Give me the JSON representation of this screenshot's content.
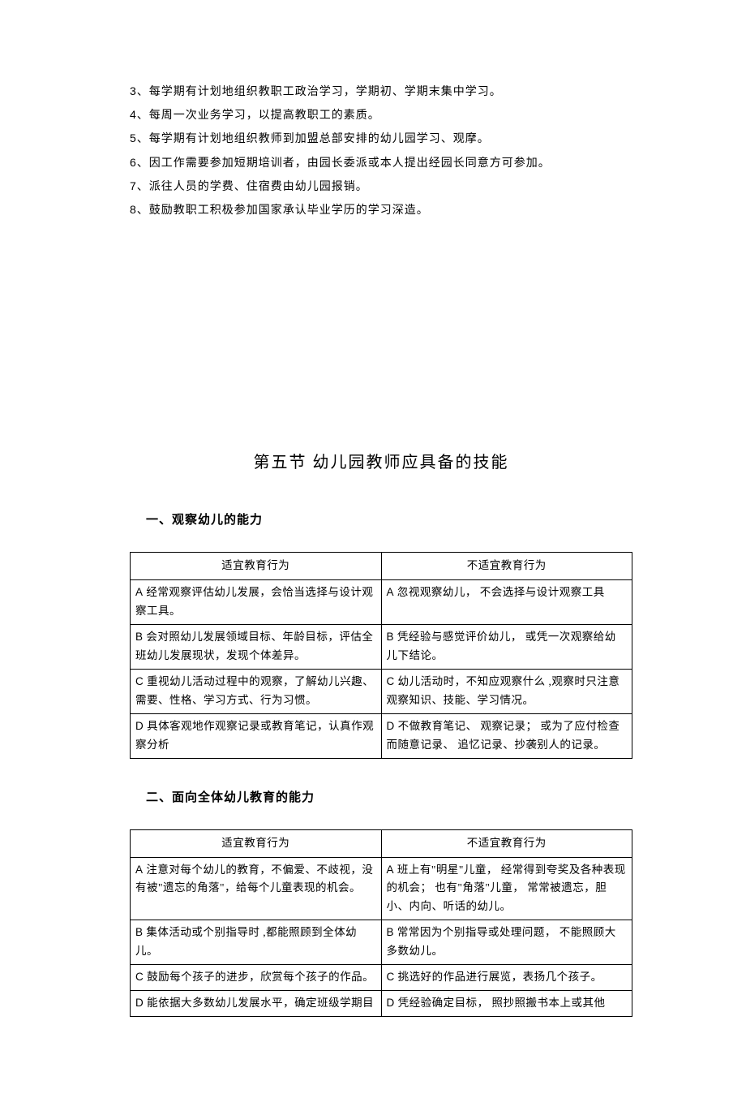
{
  "list": {
    "items": [
      {
        "num": "3",
        "text": "、每学期有计划地组织教职工政治学习，学期初、学期末集中学习。"
      },
      {
        "num": "4",
        "text": "、每周一次业务学习，以提高教职工的素质。"
      },
      {
        "num": "5",
        "text": "、每学期有计划地组织教师到加盟总部安排的幼儿园学习、观摩。"
      },
      {
        "num": "6",
        "text": "、因工作需要参加短期培训者，由园长委派或本人提出经园长同意方可参加。"
      },
      {
        "num": "7",
        "text": "、派往人员的学费、住宿费由幼儿园报销。"
      },
      {
        "num": "8",
        "text": "、鼓励教职工积极参加国家承认毕业学历的学习深造。"
      }
    ]
  },
  "section_title": "第五节 幼儿园教师应具备的技能",
  "subsection1": {
    "title": "一、观察幼儿的能力",
    "headers": {
      "left": "适宜教育行为",
      "right": "不适宜教育行为"
    },
    "rows": [
      {
        "left_label": "A",
        "left": " 经常观察评估幼儿发展，会恰当选择与设计观察工具。",
        "right_label": "A",
        "right": " 忽视观察幼儿，  不会选择与设计观察工具"
      },
      {
        "left_label": "B",
        "left": " 会对照幼儿发展领域目标、年龄目标，评估全班幼儿发展现状，发现个体差异。",
        "right_label": "B",
        "right": " 凭经验与感觉评价幼儿，  或凭一次观察给幼儿下结论。"
      },
      {
        "left_label": "C",
        "left": " 重视幼儿活动过程中的观察，了解幼儿兴趣、需要、性格、学习方式、行为习惯。",
        "right_label": "C",
        "right": " 幼儿活动时，不知应观察什么   ,观察时只注意观察知识、技能、学习情况。"
      },
      {
        "left_label": "D",
        "left": " 具体客观地作观察记录或教育笔记，认真作观察分析",
        "right_label": "D",
        "right": " 不做教育笔记、  观察记录；  或为了应付检查而随意记录、  追忆记录、抄袭别人的记录。"
      }
    ]
  },
  "subsection2": {
    "title": "二、面向全体幼儿教育的能力",
    "headers": {
      "left": "适宜教育行为",
      "right": "不适宜教育行为"
    },
    "rows": [
      {
        "left_label": "A",
        "left": " 注意对每个幼儿的教育，不偏爱、不歧视，没有被\"遗忘的角落\"，给每个儿童表现的机会。",
        "right_label": "A",
        "right": " 班上有\"明星\"儿童，  经常得到夸奖及各种表现的机会；  也有\"角落\"儿童，  常常被遗忘，胆小、内向、听话的幼儿。"
      },
      {
        "left_label": "B",
        "left": " 集体活动或个别指导时   ,都能照顾到全体幼儿。",
        "right_label": "B",
        "right": " 常常因为个别指导或处理问题，  不能照顾大多数幼儿。"
      },
      {
        "left_label": "C",
        "left": " 鼓励每个孩子的进步，欣赏每个孩子的作品。",
        "right_label": "C",
        "right": " 挑选好的作品进行展览，表扬几个孩子。"
      },
      {
        "left_label": "D",
        "left": " 能依据大多数幼儿发展水平，确定班级学期目",
        "right_label": "D",
        "right": " 凭经验确定目标，  照抄照搬书本上或其他"
      }
    ]
  }
}
